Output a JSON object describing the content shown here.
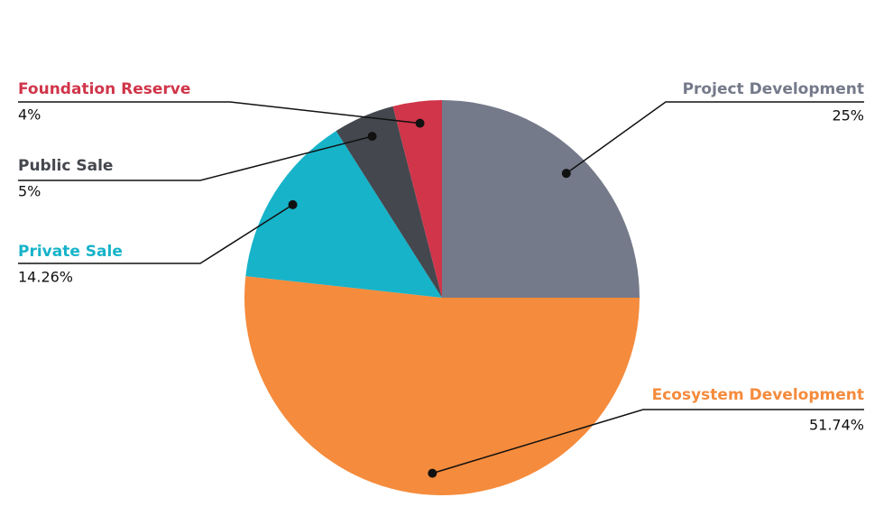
{
  "chart_data": {
    "type": "pie",
    "categories": [
      "Project Development",
      "Ecosystem Development",
      "Private Sale",
      "Public Sale",
      "Foundation Reserve"
    ],
    "values": [
      25,
      51.74,
      14.26,
      5,
      4
    ],
    "value_labels": [
      "25%",
      "51.74%",
      "14.26%",
      "5%",
      "4%"
    ],
    "colors": [
      "#757a8a",
      "#f58b3c",
      "#16b3c9",
      "#44474e",
      "#d0354a"
    ]
  }
}
